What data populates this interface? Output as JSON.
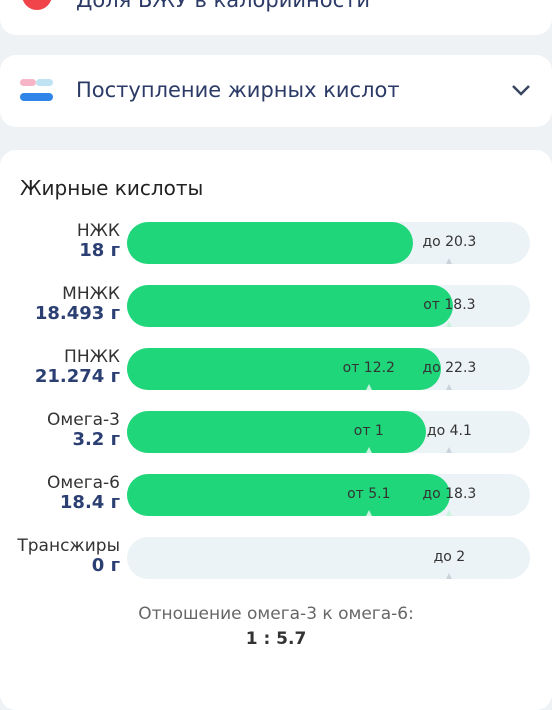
{
  "cards": [
    {
      "title": "Доля БЖУ в калорийности"
    },
    {
      "title": "Поступление жирных кислот"
    }
  ],
  "panel": {
    "title": "Жирные кислоты",
    "rows": [
      {
        "name": "НЖК",
        "value": 18,
        "value_label": "18 г",
        "max": {
          "value": 20.3,
          "label": "до 20.3"
        }
      },
      {
        "name": "МНЖК",
        "value": 18.493,
        "value_label": "18.493 г",
        "min": {
          "value": 18.3,
          "label": "от 18.3"
        }
      },
      {
        "name": "ПНЖК",
        "value": 21.274,
        "value_label": "21.274 г",
        "min": {
          "value": 12.2,
          "label": "от 12.2"
        },
        "max": {
          "value": 22.3,
          "label": "до 22.3"
        }
      },
      {
        "name": "Омега-3",
        "value": 3.2,
        "value_label": "3.2 г",
        "min": {
          "value": 1,
          "label": "от 1"
        },
        "max": {
          "value": 4.1,
          "label": "до 4.1"
        }
      },
      {
        "name": "Омега-6",
        "value": 18.4,
        "value_label": "18.4 г",
        "min": {
          "value": 5.1,
          "label": "от 5.1"
        },
        "max": {
          "value": 18.3,
          "label": "до 18.3"
        }
      },
      {
        "name": "Трансжиры",
        "value": 0,
        "value_label": "0 г",
        "max": {
          "value": 2,
          "label": "до 2"
        }
      }
    ],
    "ratio_label": "Отношение омега-3 к омега-6:",
    "ratio": "1 : 5.7"
  }
}
